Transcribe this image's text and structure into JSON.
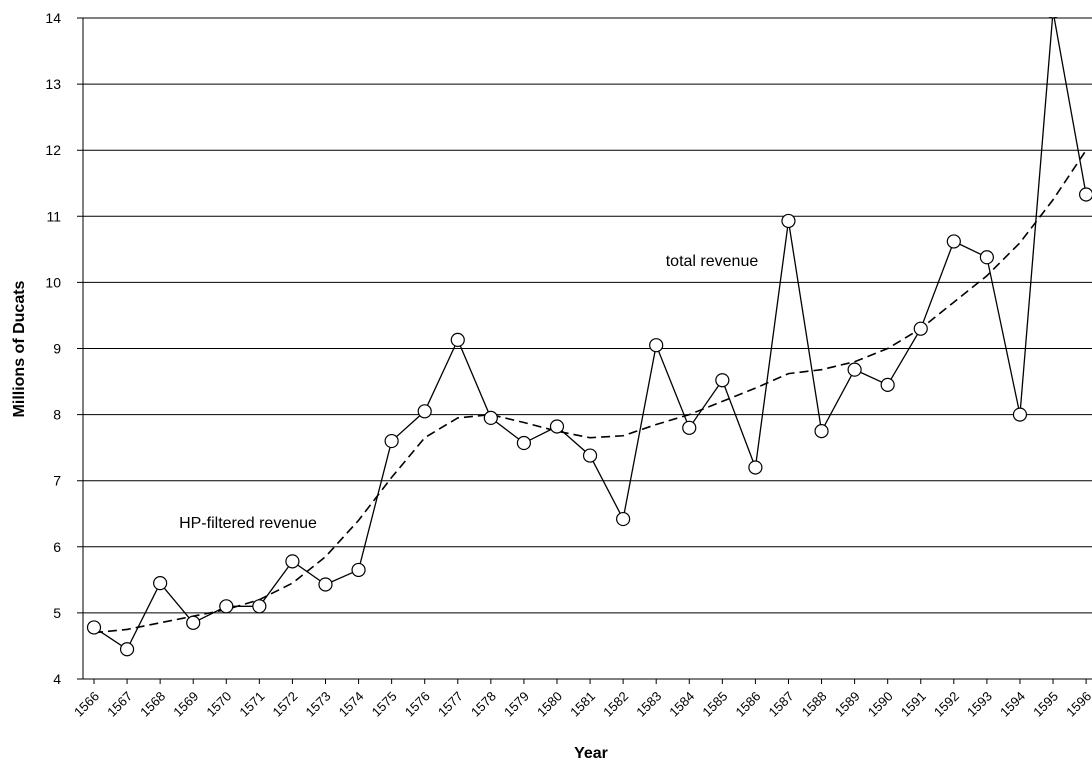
{
  "chart_data": {
    "type": "line",
    "xlabel": "Year",
    "ylabel": "Millions of Ducats",
    "categories": [
      "1566",
      "1567",
      "1568",
      "1569",
      "1570",
      "1571",
      "1572",
      "1573",
      "1574",
      "1575",
      "1576",
      "1577",
      "1578",
      "1579",
      "1580",
      "1581",
      "1582",
      "1583",
      "1584",
      "1585",
      "1586",
      "1587",
      "1588",
      "1589",
      "1590",
      "1591",
      "1592",
      "1593",
      "1594",
      "1595",
      "1596"
    ],
    "series": [
      {
        "name": "total revenue",
        "color": "#000000",
        "dashed": false,
        "markers": true,
        "values": [
          4.78,
          4.45,
          5.45,
          4.85,
          5.1,
          5.1,
          5.78,
          5.43,
          5.65,
          7.6,
          8.05,
          9.13,
          7.95,
          7.57,
          7.82,
          7.38,
          6.42,
          9.05,
          7.8,
          8.52,
          7.2,
          10.93,
          7.75,
          8.68,
          8.45,
          9.3,
          10.62,
          10.38,
          8.0,
          14.1,
          11.33
        ]
      },
      {
        "name": "HP-filtered revenue",
        "color": "#000000",
        "dashed": true,
        "markers": false,
        "values": [
          4.7,
          4.75,
          4.85,
          4.95,
          5.05,
          5.2,
          5.45,
          5.85,
          6.4,
          7.05,
          7.65,
          7.95,
          8.0,
          7.88,
          7.75,
          7.65,
          7.68,
          7.85,
          8.0,
          8.2,
          8.4,
          8.62,
          8.68,
          8.8,
          9.0,
          9.3,
          9.7,
          10.1,
          10.6,
          11.25,
          12.0
        ]
      }
    ],
    "ylim": [
      4,
      14
    ],
    "yticks": [
      4,
      5,
      6,
      7,
      8,
      9,
      10,
      11,
      12,
      13,
      14
    ],
    "grid": true
  }
}
